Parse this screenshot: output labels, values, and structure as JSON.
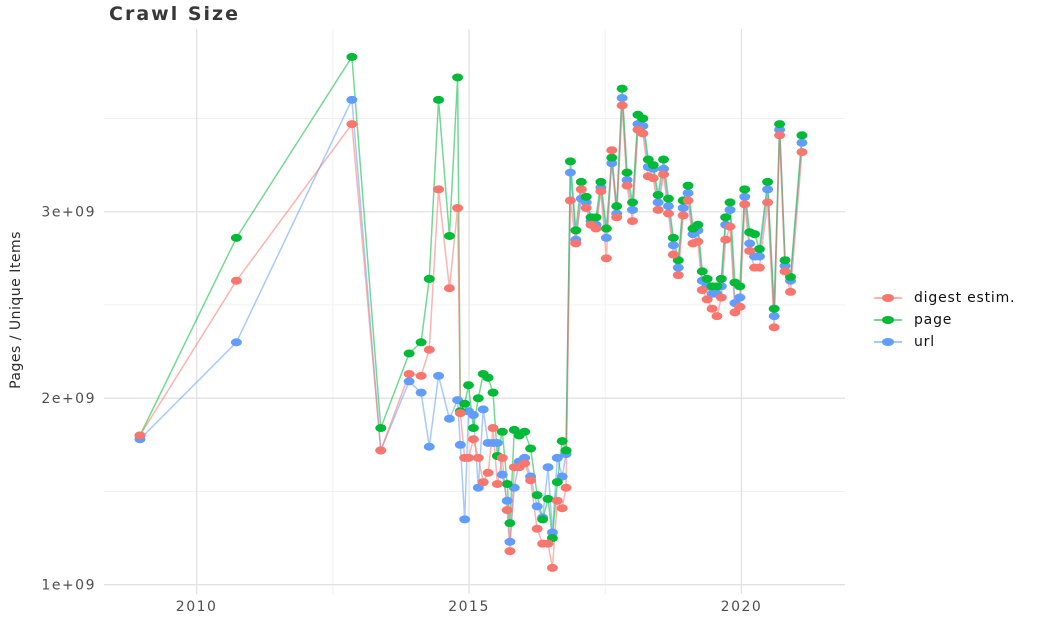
{
  "title": "Crawl Size",
  "y_axis": {
    "label": "Pages / Unique Items",
    "tick_labels": [
      "1e+09",
      "2e+09",
      "3e+09"
    ]
  },
  "x_axis": {
    "tick_labels": [
      "2010",
      "2015",
      "2020"
    ]
  },
  "legend": {
    "items": [
      {
        "label": "digest estim.",
        "color": "#F8766D"
      },
      {
        "label": "page",
        "color": "#00BA38"
      },
      {
        "label": "url",
        "color": "#619CFF"
      }
    ]
  },
  "chart_data": {
    "type": "line",
    "markers": true,
    "title": "Crawl Size",
    "xlabel": "",
    "ylabel": "Pages / Unique Items",
    "legend_position": "right",
    "grid": true,
    "xlim": [
      2008.3,
      2021.9
    ],
    "ylim": [
      950000000.0,
      3980000000.0
    ],
    "x_ticks": [
      2010,
      2015,
      2020
    ],
    "x_tick_labels": [
      "2010",
      "2015",
      "2020"
    ],
    "x_minor_ticks": [
      2012.5,
      2017.5
    ],
    "y_ticks": [
      1000000000.0,
      2000000000.0,
      3000000000.0
    ],
    "y_tick_labels": [
      "1e+09",
      "2e+09",
      "3e+09"
    ],
    "y_minor_ticks": [
      1500000000.0,
      2500000000.0,
      3500000000.0
    ],
    "x_unit": "year (decimal)",
    "x": [
      2008.96,
      2010.73,
      2012.85,
      2013.38,
      2013.9,
      2014.12,
      2014.27,
      2014.44,
      2014.64,
      2014.79,
      2014.84,
      2014.92,
      2014.99,
      2015.08,
      2015.17,
      2015.26,
      2015.35,
      2015.44,
      2015.52,
      2015.61,
      2015.7,
      2015.75,
      2015.83,
      2015.92,
      2016.02,
      2016.13,
      2016.25,
      2016.35,
      2016.45,
      2016.53,
      2016.62,
      2016.71,
      2016.78,
      2016.86,
      2016.96,
      2017.06,
      2017.15,
      2017.24,
      2017.33,
      2017.42,
      2017.52,
      2017.62,
      2017.71,
      2017.81,
      2017.9,
      2018.0,
      2018.1,
      2018.19,
      2018.29,
      2018.38,
      2018.47,
      2018.57,
      2018.66,
      2018.75,
      2018.84,
      2018.93,
      2019.02,
      2019.11,
      2019.2,
      2019.28,
      2019.37,
      2019.46,
      2019.55,
      2019.63,
      2019.71,
      2019.79,
      2019.88,
      2019.97,
      2020.06,
      2020.15,
      2020.24,
      2020.33,
      2020.48,
      2020.6,
      2020.7,
      2020.8,
      2020.9,
      2021.11
    ],
    "series": [
      {
        "name": "digest estim.",
        "color": "#F8766D",
        "values": [
          1800000000.0,
          2630000000.0,
          3470000000.0,
          1720000000.0,
          2130000000.0,
          2120000000.0,
          2260000000.0,
          3120000000.0,
          2590000000.0,
          3020000000.0,
          1920000000.0,
          1680000000.0,
          1680000000.0,
          1780000000.0,
          1680000000.0,
          1550000000.0,
          1600000000.0,
          1840000000.0,
          1540000000.0,
          1680000000.0,
          1400000000.0,
          1180000000.0,
          1630000000.0,
          1630000000.0,
          1650000000.0,
          1560000000.0,
          1300000000.0,
          1220000000.0,
          1220000000.0,
          1090000000.0,
          1450000000.0,
          1410000000.0,
          1520000000.0,
          3060000000.0,
          2830000000.0,
          3120000000.0,
          3020000000.0,
          2930000000.0,
          2910000000.0,
          3110000000.0,
          2750000000.0,
          3330000000.0,
          2970000000.0,
          3570000000.0,
          3140000000.0,
          2950000000.0,
          3440000000.0,
          3420000000.0,
          3190000000.0,
          3180000000.0,
          3010000000.0,
          3200000000.0,
          2990000000.0,
          2770000000.0,
          2660000000.0,
          2980000000.0,
          3060000000.0,
          2830000000.0,
          2840000000.0,
          2580000000.0,
          2530000000.0,
          2480000000.0,
          2440000000.0,
          2540000000.0,
          2850000000.0,
          2920000000.0,
          2460000000.0,
          2490000000.0,
          3040000000.0,
          2790000000.0,
          2700000000.0,
          2700000000.0,
          3050000000.0,
          2380000000.0,
          3410000000.0,
          2680000000.0,
          2570000000.0,
          3320000000.0
        ]
      },
      {
        "name": "page",
        "color": "#00BA38",
        "values": [
          1800000000.0,
          2860000000.0,
          3830000000.0,
          1840000000.0,
          2240000000.0,
          2300000000.0,
          2640000000.0,
          3600000000.0,
          2870000000.0,
          3720000000.0,
          1930000000.0,
          1970000000.0,
          2070000000.0,
          1840000000.0,
          2000000000.0,
          2130000000.0,
          2110000000.0,
          2030000000.0,
          1690000000.0,
          1820000000.0,
          1540000000.0,
          1330000000.0,
          1830000000.0,
          1800000000.0,
          1820000000.0,
          1730000000.0,
          1480000000.0,
          1350000000.0,
          1460000000.0,
          1250000000.0,
          1550000000.0,
          1770000000.0,
          1720000000.0,
          3270000000.0,
          2900000000.0,
          3160000000.0,
          3080000000.0,
          2970000000.0,
          2970000000.0,
          3160000000.0,
          2910000000.0,
          3290000000.0,
          3030000000.0,
          3660000000.0,
          3210000000.0,
          3050000000.0,
          3520000000.0,
          3500000000.0,
          3280000000.0,
          3250000000.0,
          3090000000.0,
          3280000000.0,
          3070000000.0,
          2860000000.0,
          2740000000.0,
          3060000000.0,
          3140000000.0,
          2910000000.0,
          2930000000.0,
          2680000000.0,
          2640000000.0,
          2600000000.0,
          2600000000.0,
          2640000000.0,
          2970000000.0,
          3050000000.0,
          2620000000.0,
          2600000000.0,
          3120000000.0,
          2890000000.0,
          2880000000.0,
          2800000000.0,
          3160000000.0,
          2480000000.0,
          3470000000.0,
          2740000000.0,
          2650000000.0,
          3410000000.0
        ]
      },
      {
        "name": "url",
        "color": "#619CFF",
        "values": [
          1780000000.0,
          2300000000.0,
          3600000000.0,
          1720000000.0,
          2090000000.0,
          2030000000.0,
          1740000000.0,
          2120000000.0,
          1890000000.0,
          1990000000.0,
          1750000000.0,
          1350000000.0,
          1930000000.0,
          1910000000.0,
          1520000000.0,
          1940000000.0,
          1760000000.0,
          1760000000.0,
          1760000000.0,
          1590000000.0,
          1450000000.0,
          1230000000.0,
          1520000000.0,
          1660000000.0,
          1680000000.0,
          1580000000.0,
          1420000000.0,
          1360000000.0,
          1630000000.0,
          1280000000.0,
          1680000000.0,
          1580000000.0,
          1700000000.0,
          3210000000.0,
          2850000000.0,
          3070000000.0,
          3050000000.0,
          2950000000.0,
          2930000000.0,
          3130000000.0,
          2860000000.0,
          3260000000.0,
          2990000000.0,
          3610000000.0,
          3170000000.0,
          3010000000.0,
          3470000000.0,
          3460000000.0,
          3240000000.0,
          3230000000.0,
          3050000000.0,
          3230000000.0,
          3030000000.0,
          2820000000.0,
          2700000000.0,
          3020000000.0,
          3100000000.0,
          2880000000.0,
          2900000000.0,
          2630000000.0,
          2600000000.0,
          2560000000.0,
          2560000000.0,
          2600000000.0,
          2930000000.0,
          3010000000.0,
          2510000000.0,
          2540000000.0,
          3080000000.0,
          2830000000.0,
          2760000000.0,
          2760000000.0,
          3120000000.0,
          2440000000.0,
          3440000000.0,
          2710000000.0,
          2630000000.0,
          3370000000.0
        ]
      }
    ]
  },
  "style": {
    "grid_major_color": "#e2e2e2",
    "grid_minor_color": "#efefef",
    "tick_text_color": "#4e4e4e"
  }
}
